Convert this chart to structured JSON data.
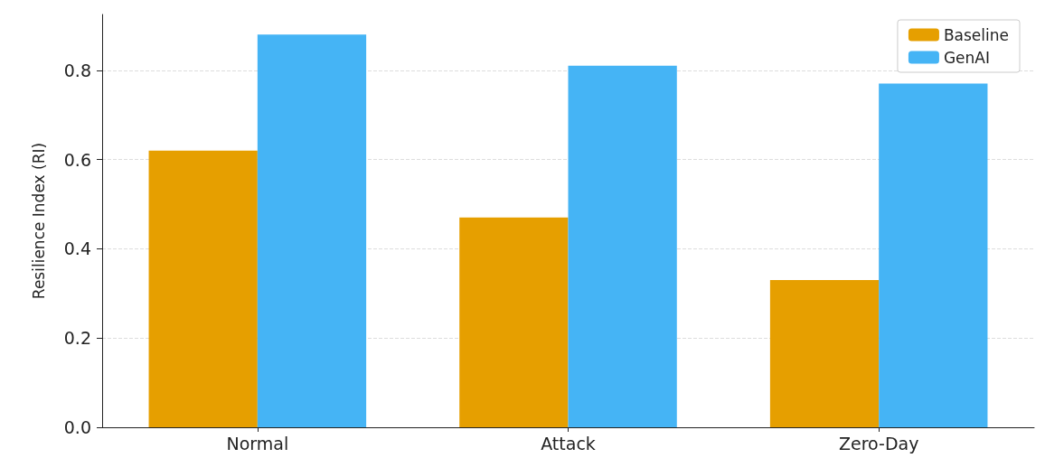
{
  "chart_data": {
    "type": "bar",
    "ylabel": "Resilience Index (RI)",
    "categories": [
      "Normal",
      "Attack",
      "Zero-Day"
    ],
    "series": [
      {
        "name": "Baseline",
        "color": "#e69f00",
        "values": [
          0.62,
          0.47,
          0.33
        ]
      },
      {
        "name": "GenAI",
        "color": "#45b4f5",
        "values": [
          0.88,
          0.81,
          0.77
        ]
      }
    ],
    "ylim": [
      0,
      0.925
    ],
    "yticks": [
      {
        "value": 0,
        "label": "0.0"
      },
      {
        "value": 0.2,
        "label": "0.2"
      },
      {
        "value": 0.4,
        "label": "0.4"
      },
      {
        "value": 0.6,
        "label": "0.6"
      },
      {
        "value": 0.8,
        "label": "0.8"
      }
    ],
    "grid": "y",
    "legend": "top right"
  }
}
